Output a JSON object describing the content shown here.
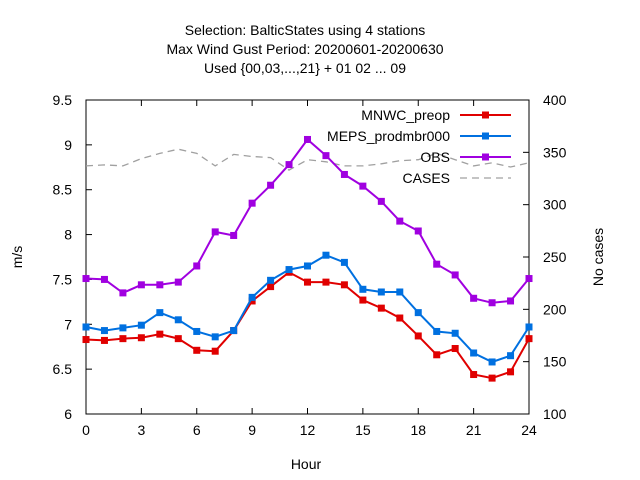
{
  "chart_data": {
    "type": "line",
    "title_lines": [
      "Selection: BalticStates using     4 stations",
      "Max Wind Gust   Period: 20200601-20200630",
      "Used {00,03,...,21} + 01 02 ... 09"
    ],
    "xlabel": "Hour",
    "ylabel": "m/s",
    "y2label": "No cases",
    "xlim": [
      0,
      24
    ],
    "ylim": [
      6,
      9.5
    ],
    "y2lim": [
      100,
      400
    ],
    "x_ticks": [
      "0",
      "3",
      "6",
      "9",
      "12",
      "15",
      "18",
      "21",
      "24"
    ],
    "y_ticks": [
      "6",
      "6.5",
      "7",
      "7.5",
      "8",
      "8.5",
      "9",
      "9.5"
    ],
    "y2_ticks": [
      "100",
      "150",
      "200",
      "250",
      "300",
      "350",
      "400"
    ],
    "grid": false,
    "legend_position": "top-right",
    "x": [
      0,
      1,
      2,
      3,
      4,
      5,
      6,
      7,
      8,
      9,
      10,
      11,
      12,
      13,
      14,
      15,
      16,
      17,
      18,
      19,
      20,
      21,
      22,
      23,
      24
    ],
    "series": [
      {
        "name": "MNWC_preop",
        "color": "#e00000",
        "marker": "square",
        "axis": "left",
        "values": [
          6.83,
          6.82,
          6.84,
          6.85,
          6.89,
          6.84,
          6.71,
          6.7,
          6.93,
          7.26,
          7.42,
          7.58,
          7.47,
          7.47,
          7.44,
          7.27,
          7.18,
          7.07,
          6.87,
          6.66,
          6.73,
          6.44,
          6.4,
          6.47,
          6.84
        ]
      },
      {
        "name": "MEPS_prodmbr000",
        "color": "#0070e0",
        "marker": "square",
        "axis": "left",
        "values": [
          6.97,
          6.93,
          6.96,
          6.99,
          7.13,
          7.05,
          6.92,
          6.86,
          6.93,
          7.3,
          7.49,
          7.61,
          7.65,
          7.77,
          7.69,
          7.39,
          7.36,
          7.36,
          7.13,
          6.92,
          6.9,
          6.68,
          6.58,
          6.65,
          6.97
        ]
      },
      {
        "name": "OBS",
        "color": "#a000e0",
        "marker": "square",
        "axis": "left",
        "values": [
          7.51,
          7.5,
          7.35,
          7.44,
          7.44,
          7.47,
          7.65,
          8.03,
          7.99,
          8.35,
          8.55,
          8.78,
          9.06,
          8.88,
          8.67,
          8.54,
          8.37,
          8.15,
          8.04,
          7.67,
          7.55,
          7.29,
          7.24,
          7.26,
          7.51
        ]
      },
      {
        "name": "CASES",
        "color": "#a0a0a0",
        "marker": "none",
        "dashed": true,
        "axis": "right",
        "values": [
          337,
          338,
          337,
          344,
          349,
          353,
          349,
          337,
          348,
          346,
          345,
          333,
          343,
          341,
          337,
          337,
          339,
          342,
          343,
          349,
          343,
          337,
          340,
          336,
          340
        ]
      }
    ]
  }
}
